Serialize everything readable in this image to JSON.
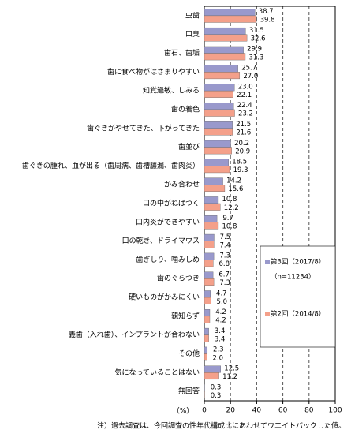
{
  "chart_data": {
    "type": "bar",
    "orientation": "horizontal",
    "categories": [
      "虫歯",
      "口臭",
      "歯石、歯垢",
      "歯に食べ物がはさまりやすい",
      "知覚過敏、しみる",
      "歯の着色",
      "歯ぐきがやせてきた、下がってきた",
      "歯並び",
      "歯ぐきの腫れ、血が出る（歯周病、歯槽膿漏、歯肉炎）",
      "かみ合わせ",
      "口の中がねばつく",
      "口内炎ができやすい",
      "口の乾き、ドライマウス",
      "歯ぎしり、噛みしめ",
      "歯のぐらつき",
      "硬いものがかみにくい",
      "親知らず",
      "義歯（入れ歯）、インプラントが合わない",
      "その他",
      "気になっていることはない",
      "無回答"
    ],
    "series": [
      {
        "name": "第3回（2017/8）",
        "color": "#9999cc",
        "values": [
          38.7,
          31.5,
          29.9,
          25.7,
          23.0,
          22.4,
          21.5,
          20.2,
          18.5,
          14.2,
          10.8,
          9.7,
          7.5,
          7.3,
          6.7,
          4.7,
          4.2,
          3.4,
          2.3,
          12.5,
          0.3
        ],
        "value_labels": [
          "38.7",
          "31.5",
          "29.9",
          "25.7",
          "23.0",
          "22.4",
          "21.5",
          "20.2",
          "18.5",
          "14.2",
          "10.8",
          "9.7",
          "7.5",
          "7.3",
          "6.7",
          "4.7",
          "4.2",
          "3.4",
          "2.3",
          "12.5",
          "0.3"
        ]
      },
      {
        "name": "第2回（2014/8）",
        "color": "#f4a08a",
        "values": [
          39.8,
          32.6,
          31.3,
          27.0,
          22.1,
          23.2,
          21.6,
          20.9,
          19.3,
          15.6,
          12.2,
          10.8,
          7.4,
          6.8,
          7.3,
          5.0,
          4.2,
          3.4,
          2.0,
          11.2,
          0.3
        ],
        "value_labels": [
          "39.8",
          "32.6",
          "31.3",
          "27.0",
          "22.1",
          "23.2",
          "21.6",
          "20.9",
          "19.3",
          "15.6",
          "12.2",
          "10.8",
          "7.4",
          "6.8",
          "7.3",
          "5.0",
          "4.2",
          "3.4",
          "2.0",
          "11.2",
          "0.3"
        ]
      }
    ],
    "legend_note": "（n=11234）",
    "x_label": "（%）",
    "note": "注）過去調査は、今回調査の性年代構成比にあわせてウエイトバックした値。",
    "xlim": [
      0,
      100
    ],
    "xticks": [
      0,
      20,
      40,
      60,
      80,
      100
    ],
    "grid": true
  }
}
